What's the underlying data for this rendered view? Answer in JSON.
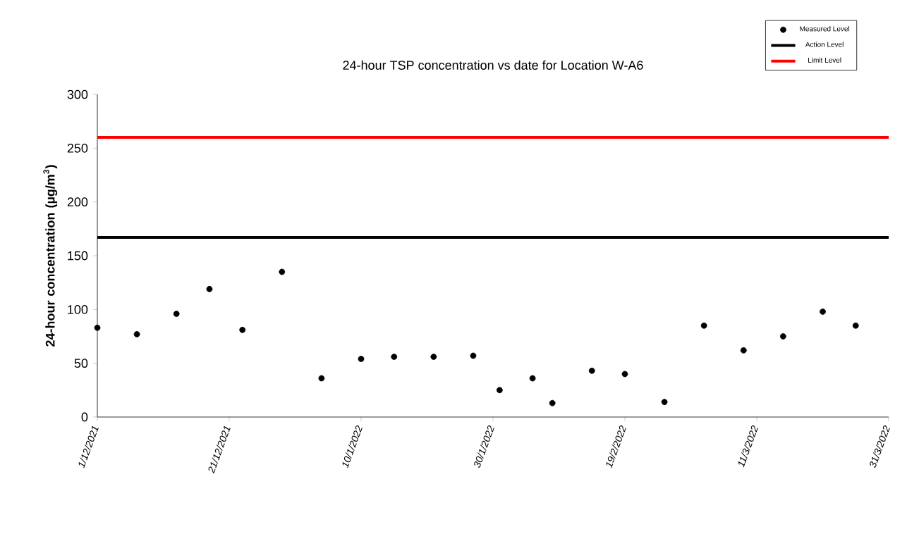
{
  "chart_data": {
    "type": "scatter",
    "title": "24-hour TSP concentration vs date for Location W-A6",
    "ylabel": "24-hour concentration (µg/m$^{3}$)",
    "x": [
      "2021-12-01",
      "2021-12-07",
      "2021-12-13",
      "2021-12-18",
      "2021-12-23",
      "2021-12-29",
      "2022-01-04",
      "2022-01-10",
      "2022-01-15",
      "2022-01-21",
      "2022-01-27",
      "2022-01-31",
      "2022-02-05",
      "2022-02-08",
      "2022-02-14",
      "2022-02-19",
      "2022-02-25",
      "2022-03-03",
      "2022-03-09",
      "2022-03-15",
      "2022-03-21",
      "2022-03-26"
    ],
    "series": [
      {
        "name": "Measured Level",
        "color": "#000000",
        "values": [
          83,
          77,
          96,
          119,
          81,
          135,
          36,
          54,
          56,
          56,
          57,
          25,
          36,
          13,
          43,
          40,
          14,
          85,
          62,
          75,
          98,
          85
        ]
      }
    ],
    "ref_lines": [
      {
        "axis": "y",
        "value": 167,
        "label": "Action Level",
        "color": "#000000"
      },
      {
        "axis": "y",
        "value": 260,
        "label": "Limit Level",
        "color": "#ff0000"
      }
    ],
    "xlim": [
      "2021-12-01",
      "2022-03-31"
    ],
    "xticks": [
      {
        "value": "2021-12-01",
        "label": "1/12/2021"
      },
      {
        "value": "2021-12-21",
        "label": "21/12/2021"
      },
      {
        "value": "2022-01-10",
        "label": "10/1/2022"
      },
      {
        "value": "2022-01-30",
        "label": "30/1/2022"
      },
      {
        "value": "2022-02-19",
        "label": "19/2/2022"
      },
      {
        "value": "2022-03-11",
        "label": "11/3/2022"
      },
      {
        "value": "2022-03-31",
        "label": "31/3/2022"
      }
    ],
    "ylim": [
      0,
      300
    ],
    "yticks": [
      0,
      50,
      100,
      150,
      200,
      250,
      300
    ],
    "marker": "circle",
    "grid": false,
    "legend": "top right"
  }
}
